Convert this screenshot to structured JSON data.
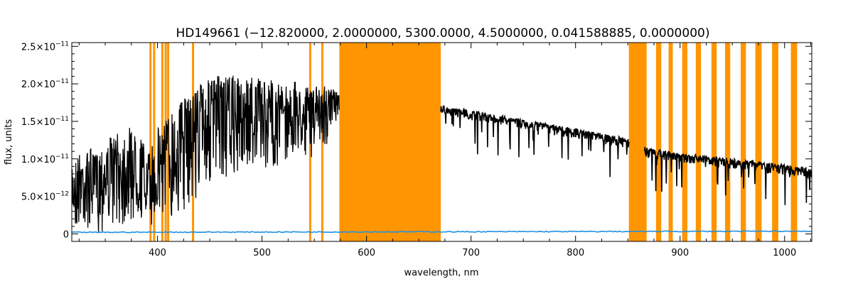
{
  "chart_data": {
    "type": "line",
    "title": "HD149661   (−12.820000, 2.0000000, 5300.0000, 4.5000000, 0.041588885, 0.0000000)",
    "xlabel": "wavelength, nm",
    "ylabel": "flux, units",
    "xlim": [
      318,
      1026
    ],
    "ylim": [
      -1e-12,
      2.55e-11
    ],
    "x_ticks": [
      400,
      500,
      600,
      700,
      800,
      900,
      1000
    ],
    "x_tick_labels": [
      "400",
      "500",
      "600",
      "700",
      "800",
      "900",
      "1000"
    ],
    "y_ticks": [
      0,
      5e-12,
      1e-11,
      1.5e-11,
      2e-11,
      2.5e-11
    ],
    "y_tick_labels": [
      {
        "mantissa": "0",
        "exponent": ""
      },
      {
        "mantissa": "5.0×10",
        "exponent": "−12"
      },
      {
        "mantissa": "1.0×10",
        "exponent": "−11"
      },
      {
        "mantissa": "1.5×10",
        "exponent": "−11"
      },
      {
        "mantissa": "2.0×10",
        "exponent": "−11"
      },
      {
        "mantissa": "2.5×10",
        "exponent": "−11"
      }
    ],
    "grid": false,
    "series": [
      {
        "color": "#000000",
        "upper_envelope": {
          "x": [
            318,
            325,
            335,
            345,
            355,
            365,
            375,
            385,
            390,
            395,
            400,
            405,
            410,
            420,
            430,
            440,
            450,
            460,
            470,
            480,
            490,
            500,
            510,
            520,
            530,
            540,
            550,
            560,
            570,
            574
          ],
          "y": [
            1e-11,
            1.1e-11,
            1.15e-11,
            1.2e-11,
            1.3e-11,
            1.35e-11,
            1.45e-11,
            1.3e-11,
            1.05e-11,
            1.2e-11,
            1.45e-11,
            1.55e-11,
            1.6e-11,
            1.8e-11,
            1.9e-11,
            2.05e-11,
            2.1e-11,
            2.15e-11,
            2.12e-11,
            2.1e-11,
            2.12e-11,
            2.1e-11,
            2.08e-11,
            2.06e-11,
            2.05e-11,
            2.03e-11,
            2e-11,
            1.98e-11,
            1.95e-11,
            1.95e-11
          ]
        },
        "lower_envelope": {
          "x": [
            318,
            325,
            335,
            345,
            355,
            365,
            375,
            385,
            390,
            395,
            400,
            405,
            410,
            420,
            430,
            440,
            450,
            460,
            470,
            480,
            490,
            500,
            510,
            520,
            530,
            540,
            550,
            560,
            570,
            574
          ],
          "y": [
            1.5e-12,
            1.5e-12,
            1e-12,
            1.5e-12,
            2e-12,
            2e-12,
            2e-12,
            2.5e-12,
            1e-12,
            1.5e-12,
            2e-12,
            2.5e-12,
            2e-12,
            3e-12,
            4.5e-12,
            6e-12,
            7e-12,
            7.5e-12,
            8e-12,
            8.5e-12,
            9e-12,
            9.5e-12,
            9.5e-12,
            1e-11,
            1.05e-11,
            1.1e-11,
            1.2e-11,
            1.3e-11,
            1.4e-11,
            1.5e-11
          ]
        },
        "continuum": {
          "x": [
            671,
            700,
            750,
            800,
            850,
            851,
            866,
            870,
            900,
            950,
            1000,
            1026
          ],
          "y": [
            1.7e-11,
            1.62e-11,
            1.5e-11,
            1.38e-11,
            1.25e-11,
            1.22e-11,
            1.15e-11,
            1.12e-11,
            1.05e-11,
            9.8e-12,
            9e-12,
            8.5e-12
          ]
        }
      },
      {
        "color": "#1f8fe0",
        "x": [
          318,
          1026
        ],
        "y": [
          1.5e-13,
          3e-13
        ]
      }
    ],
    "masked_regions": {
      "color": "#ff9500",
      "bands": [
        [
          574,
          671
        ],
        [
          851,
          868
        ],
        [
          877,
          882
        ],
        [
          889,
          893
        ],
        [
          902,
          907
        ],
        [
          915,
          920
        ],
        [
          930,
          935
        ],
        [
          943,
          948
        ],
        [
          958,
          963
        ],
        [
          972,
          978
        ],
        [
          988,
          994
        ],
        [
          1006,
          1012
        ]
      ],
      "lines": [
        393.3,
        396.8,
        404.6,
        407.8,
        410.2,
        434.0,
        546.1,
        557.7
      ]
    }
  }
}
